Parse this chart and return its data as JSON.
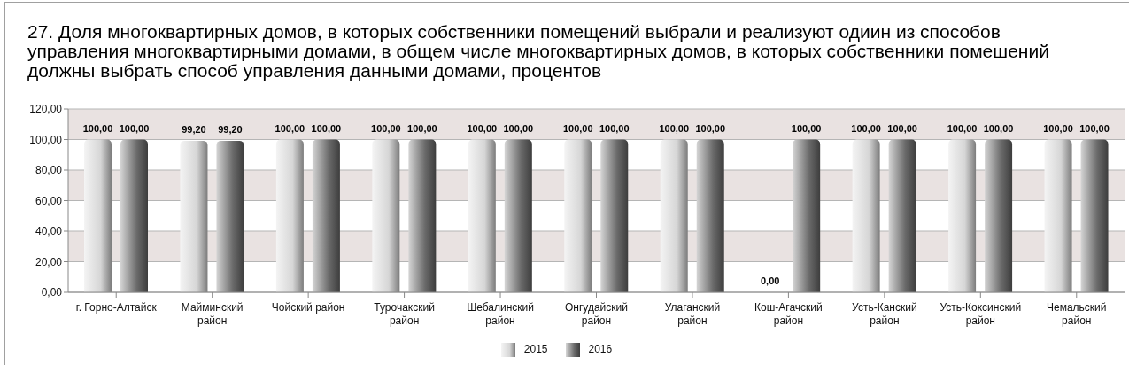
{
  "chart_data": {
    "type": "bar",
    "title": "27. Доля многоквартирных домов, в которых собственники помещений выбрали и реализуют одиин из способов управления многоквартирными домами, в общем числе многоквартирных домов, в которых собственники помешений должны выбрать способ управления данными домами, процентов",
    "categories": [
      "г. Горно-Алтайск",
      "Майминский район",
      "Чойский район",
      "Турочакский район",
      "Шебалинский район",
      "Онгудайский район",
      "Улаганский район",
      "Кош-Агачский район",
      "Усть-Канский район",
      "Усть-Коксинский район",
      "Чемальский район"
    ],
    "series": [
      {
        "name": "2015",
        "color": "#d6d6d6",
        "values": [
          100,
          99.2,
          100,
          100,
          100,
          100,
          100,
          0,
          100,
          100,
          100
        ],
        "value_labels": [
          "100,00",
          "99,20",
          "100,00",
          "100,00",
          "100,00",
          "100,00",
          "100,00",
          "0,00",
          "100,00",
          "100,00",
          "100,00"
        ]
      },
      {
        "name": "2016",
        "color": "#6a6a6a",
        "values": [
          100,
          99.2,
          100,
          100,
          100,
          100,
          100,
          100,
          100,
          100,
          100
        ],
        "value_labels": [
          "100,00",
          "99,20",
          "100,00",
          "100,00",
          "100,00",
          "100,00",
          "100,00",
          "100,00",
          "100,00",
          "100,00",
          "100,00"
        ]
      }
    ],
    "ylim": [
      0,
      120
    ],
    "yticks": [
      {
        "value": 0,
        "label": "0,00"
      },
      {
        "value": 20,
        "label": "20,00"
      },
      {
        "value": 40,
        "label": "40,00"
      },
      {
        "value": 60,
        "label": "60,00"
      },
      {
        "value": 80,
        "label": "80,00"
      },
      {
        "value": 100,
        "label": "100,00"
      },
      {
        "value": 120,
        "label": "120,00"
      }
    ],
    "grid": "y",
    "legend": "bottom"
  }
}
